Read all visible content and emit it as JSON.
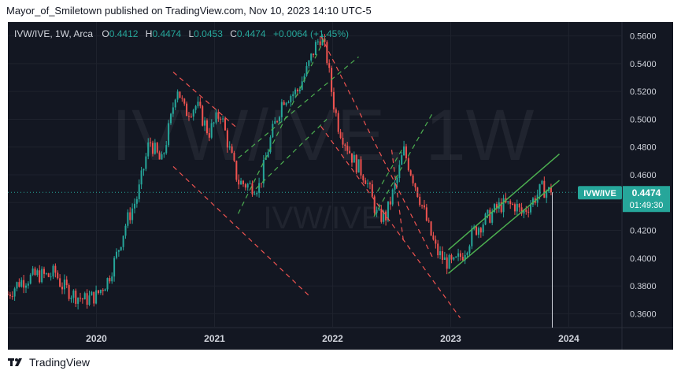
{
  "header": {
    "text": "Mayor_of_Smiletown published on TradingView.com, Nov 10, 2023 14:10 UTC-5"
  },
  "legend": {
    "symbol": "IVW/IVE, 1W, Arca",
    "o_label": "O",
    "o": "0.4412",
    "h_label": "H",
    "h": "0.4474",
    "l_label": "L",
    "l": "0.0453",
    "c_label": "C",
    "c": "0.4474",
    "change": "+0.0064 (+1.45%)"
  },
  "watermark": {
    "big": "IVW/IVE, 1W",
    "small": "IVW/IVE"
  },
  "price_tag": {
    "symbol": "IVW/IVE",
    "price": "0.4474",
    "countdown": "01:49:30"
  },
  "footer": {
    "brand": "TradingView"
  },
  "colors": {
    "up": "#26a69a",
    "down": "#ef5350",
    "channel_red": "#ef5350",
    "channel_green": "#4caf50",
    "price_tag": "#26a69a"
  },
  "chart_data": {
    "type": "candlestick",
    "y_axis": {
      "min": 0.35,
      "max": 0.57,
      "ticks": [
        "0.3600",
        "0.3800",
        "0.4000",
        "0.4200",
        "0.4400",
        "0.4600",
        "0.4800",
        "0.5000",
        "0.5200",
        "0.5400",
        "0.5600"
      ]
    },
    "x_axis": {
      "start": 2019.25,
      "end": 2024.45,
      "ticks": [
        {
          "x": 2020,
          "label": "2020"
        },
        {
          "x": 2021,
          "label": "2021"
        },
        {
          "x": 2022,
          "label": "2022"
        },
        {
          "x": 2023,
          "label": "2023"
        },
        {
          "x": 2024,
          "label": "2024"
        }
      ]
    },
    "grid": true,
    "last_price": 0.4474,
    "close_path": [
      [
        2019.25,
        0.374
      ],
      [
        2019.35,
        0.383
      ],
      [
        2019.5,
        0.388
      ],
      [
        2019.6,
        0.387
      ],
      [
        2019.65,
        0.39
      ],
      [
        2019.7,
        0.381
      ],
      [
        2019.8,
        0.374
      ],
      [
        2019.9,
        0.37
      ],
      [
        2020.0,
        0.373
      ],
      [
        2020.1,
        0.385
      ],
      [
        2020.17,
        0.402
      ],
      [
        2020.25,
        0.425
      ],
      [
        2020.35,
        0.445
      ],
      [
        2020.45,
        0.485
      ],
      [
        2020.55,
        0.468
      ],
      [
        2020.63,
        0.5
      ],
      [
        2020.68,
        0.525
      ],
      [
        2020.75,
        0.505
      ],
      [
        2020.85,
        0.51
      ],
      [
        2020.95,
        0.49
      ],
      [
        2021.05,
        0.505
      ],
      [
        2021.12,
        0.48
      ],
      [
        2021.2,
        0.455
      ],
      [
        2021.3,
        0.452
      ],
      [
        2021.38,
        0.452
      ],
      [
        2021.48,
        0.488
      ],
      [
        2021.58,
        0.515
      ],
      [
        2021.7,
        0.52
      ],
      [
        2021.78,
        0.535
      ],
      [
        2021.85,
        0.552
      ],
      [
        2021.9,
        0.56
      ],
      [
        2021.95,
        0.545
      ],
      [
        2022.0,
        0.515
      ],
      [
        2022.05,
        0.495
      ],
      [
        2022.1,
        0.485
      ],
      [
        2022.18,
        0.47
      ],
      [
        2022.28,
        0.458
      ],
      [
        2022.38,
        0.43
      ],
      [
        2022.45,
        0.43
      ],
      [
        2022.55,
        0.458
      ],
      [
        2022.6,
        0.478
      ],
      [
        2022.68,
        0.458
      ],
      [
        2022.75,
        0.44
      ],
      [
        2022.82,
        0.42
      ],
      [
        2022.88,
        0.405
      ],
      [
        2022.95,
        0.398
      ],
      [
        2023.02,
        0.395
      ],
      [
        2023.1,
        0.403
      ],
      [
        2023.2,
        0.42
      ],
      [
        2023.3,
        0.428
      ],
      [
        2023.42,
        0.438
      ],
      [
        2023.55,
        0.438
      ],
      [
        2023.6,
        0.432
      ],
      [
        2023.7,
        0.442
      ],
      [
        2023.77,
        0.45
      ],
      [
        2023.83,
        0.448
      ],
      [
        2023.86,
        0.4474
      ]
    ],
    "channels": [
      {
        "color": "red",
        "lines": [
          [
            [
              2020.65,
              0.534
            ],
            [
              2021.2,
              0.493
            ]
          ],
          [
            [
              2020.65,
              0.466
            ],
            [
              2021.8,
              0.373
            ]
          ]
        ]
      },
      {
        "color": "green",
        "lines": [
          [
            [
              2021.2,
              0.432
            ],
            [
              2021.95,
              0.561
            ]
          ],
          [
            [
              2021.2,
              0.472
            ],
            [
              2022.22,
              0.545
            ]
          ],
          [
            [
              2021.35,
              0.45
            ],
            [
              2021.95,
              0.5
            ]
          ]
        ]
      },
      {
        "color": "red",
        "lines": [
          [
            [
              2021.9,
              0.56
            ],
            [
              2022.85,
              0.4
            ]
          ],
          [
            [
              2021.9,
              0.495
            ],
            [
              2023.08,
              0.357
            ]
          ],
          [
            [
              2022.5,
              0.478
            ],
            [
              2022.6,
              0.412
            ]
          ]
        ]
      },
      {
        "color": "green",
        "lines": [
          [
            [
              2022.35,
              0.43
            ],
            [
              2022.85,
              0.505
            ]
          ],
          [
            [
              2022.38,
              0.448
            ],
            [
              2022.6,
              0.48
            ]
          ]
        ]
      },
      {
        "color": "green",
        "lines": [
          [
            [
              2022.98,
              0.406
            ],
            [
              2023.92,
              0.475
            ]
          ],
          [
            [
              2022.98,
              0.389
            ],
            [
              2023.92,
              0.456
            ]
          ]
        ]
      }
    ],
    "vertical_marker": {
      "x": 2023.86,
      "y_from": 0.4474,
      "y_to": 0.35
    }
  }
}
